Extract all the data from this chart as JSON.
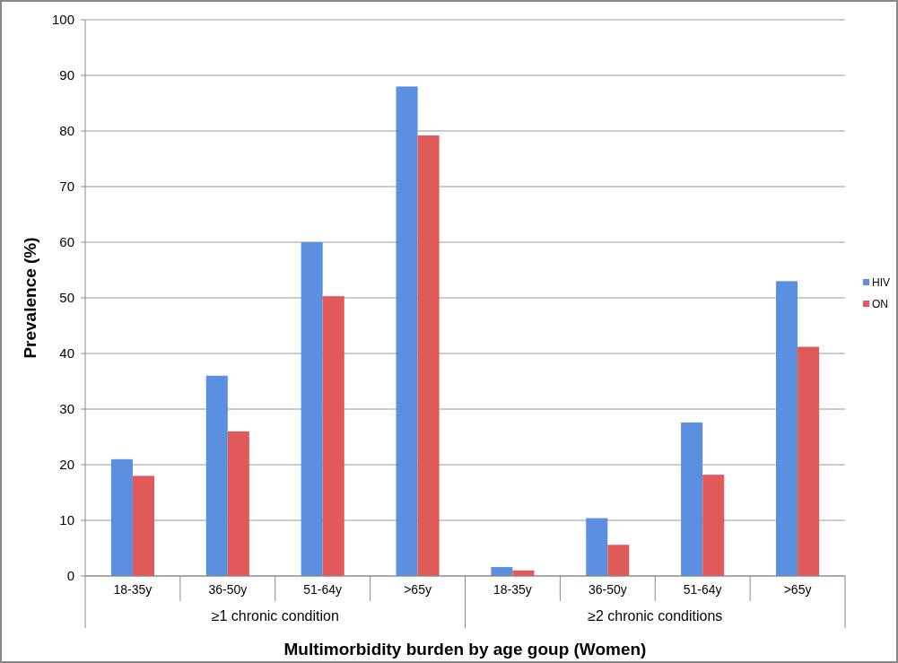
{
  "chart_data": {
    "type": "bar",
    "xlabel": "Multimorbidity burden by age goup (Women)",
    "ylabel": "Prevalence (%)",
    "categories": [
      "18-35y",
      "36-50y",
      "51-64y",
      ">65y",
      "18-35y",
      "36-50y",
      "51-64y",
      ">65y"
    ],
    "annotations": [
      "≥1 chronic condition",
      "≥2 chronic conditions"
    ],
    "series": [
      {
        "name": "HIV",
        "color": "#5b8fe0",
        "values": [
          21,
          36,
          60,
          88,
          1.6,
          10.4,
          27.6,
          53
        ]
      },
      {
        "name": "ON",
        "color": "#e05a5a",
        "values": [
          18,
          26,
          50.3,
          79.2,
          1,
          5.6,
          18.2,
          41.2
        ]
      }
    ],
    "ylim": [
      0,
      100
    ],
    "yticks": [
      0,
      10,
      20,
      30,
      40,
      50,
      60,
      70,
      80,
      90,
      100
    ],
    "grid": "y",
    "legend": "right"
  }
}
